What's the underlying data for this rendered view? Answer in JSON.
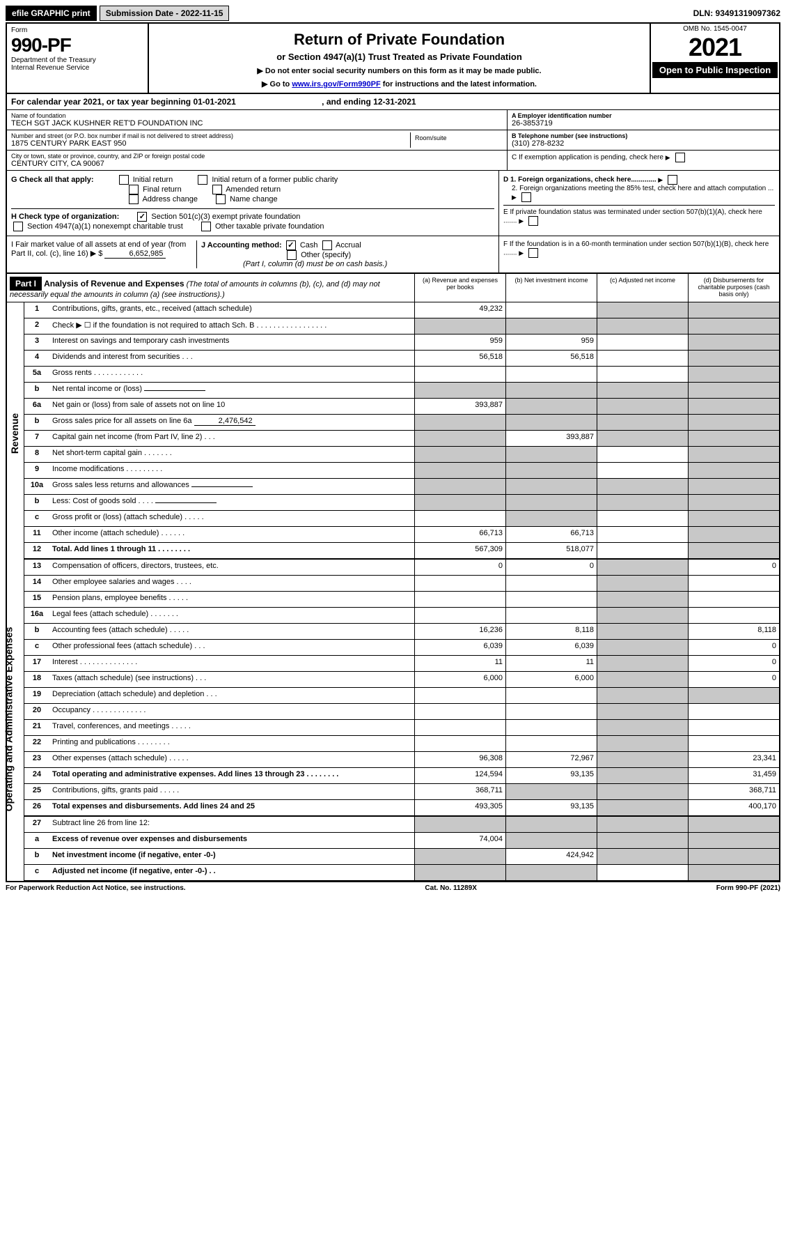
{
  "topbar": {
    "efile": "efile GRAPHIC print",
    "submission": "Submission Date - 2022-11-15",
    "dln": "DLN: 93491319097362"
  },
  "header": {
    "form_label": "Form",
    "form_num": "990-PF",
    "dept": "Department of the Treasury",
    "irs": "Internal Revenue Service",
    "title": "Return of Private Foundation",
    "subtitle": "or Section 4947(a)(1) Trust Treated as Private Foundation",
    "inst1": "▶ Do not enter social security numbers on this form as it may be made public.",
    "inst2_pre": "▶ Go to ",
    "inst2_link": "www.irs.gov/Form990PF",
    "inst2_post": " for instructions and the latest information.",
    "omb": "OMB No. 1545-0047",
    "year": "2021",
    "open": "Open to Public Inspection"
  },
  "calyr": "For calendar year 2021, or tax year beginning 01-01-2021",
  "calyr_end": ", and ending 12-31-2021",
  "foundation": {
    "name_lbl": "Name of foundation",
    "name": "TECH SGT JACK KUSHNER RET'D FOUNDATION INC",
    "addr_lbl": "Number and street (or P.O. box number if mail is not delivered to street address)",
    "addr": "1875 CENTURY PARK EAST 950",
    "room_lbl": "Room/suite",
    "city_lbl": "City or town, state or province, country, and ZIP or foreign postal code",
    "city": "CENTURY CITY, CA  90067"
  },
  "right_info": {
    "ein_lbl": "A Employer identification number",
    "ein": "26-3853719",
    "tel_lbl": "B Telephone number (see instructions)",
    "tel": "(310) 278-8232",
    "c": "C If exemption application is pending, check here",
    "d1": "D 1. Foreign organizations, check here.............",
    "d2": "2. Foreign organizations meeting the 85% test, check here and attach computation ...",
    "e": "E  If private foundation status was terminated under section 507(b)(1)(A), check here .......",
    "f": "F  If the foundation is in a 60-month termination under section 507(b)(1)(B), check here ......."
  },
  "g": {
    "label": "G Check all that apply:",
    "opts": [
      "Initial return",
      "Final return",
      "Address change",
      "Initial return of a former public charity",
      "Amended return",
      "Name change"
    ]
  },
  "h": {
    "label": "H Check type of organization:",
    "opt1": "Section 501(c)(3) exempt private foundation",
    "opt2": "Section 4947(a)(1) nonexempt charitable trust",
    "opt3": "Other taxable private foundation"
  },
  "i": {
    "label": "I Fair market value of all assets at end of year (from Part II, col. (c), line 16) ▶ $",
    "val": "6,652,985"
  },
  "j": {
    "label": "J Accounting method:",
    "cash": "Cash",
    "accrual": "Accrual",
    "other": "Other (specify)",
    "note": "(Part I, column (d) must be on cash basis.)"
  },
  "part1": {
    "hdr": "Part I",
    "title": "Analysis of Revenue and Expenses",
    "sub": "(The total of amounts in columns (b), (c), and (d) may not necessarily equal the amounts in column (a) (see instructions).)",
    "cols": {
      "a": "(a) Revenue and expenses per books",
      "b": "(b) Net investment income",
      "c": "(c) Adjusted net income",
      "d": "(d) Disbursements for charitable purposes (cash basis only)"
    }
  },
  "sidelabels": {
    "rev": "Revenue",
    "exp": "Operating and Administrative Expenses"
  },
  "lines": [
    {
      "n": "1",
      "d": "Contributions, gifts, grants, etc., received (attach schedule)",
      "a": "49,232",
      "b": "",
      "c": "g",
      "dd": "g"
    },
    {
      "n": "2",
      "d": "Check ▶ ☐ if the foundation is not required to attach Sch. B  . . . . . . . . . . . . . . . . .",
      "a": "g",
      "b": "g",
      "c": "g",
      "dd": "g"
    },
    {
      "n": "3",
      "d": "Interest on savings and temporary cash investments",
      "a": "959",
      "b": "959",
      "c": "",
      "dd": "g"
    },
    {
      "n": "4",
      "d": "Dividends and interest from securities  . . .",
      "a": "56,518",
      "b": "56,518",
      "c": "",
      "dd": "g"
    },
    {
      "n": "5a",
      "d": "Gross rents  . . . . . . . . . . . .",
      "a": "",
      "b": "",
      "c": "",
      "dd": "g"
    },
    {
      "n": "b",
      "d": "Net rental income or (loss)",
      "a": "g",
      "b": "g",
      "c": "g",
      "dd": "g",
      "inline": true
    },
    {
      "n": "6a",
      "d": "Net gain or (loss) from sale of assets not on line 10",
      "a": "393,887",
      "b": "g",
      "c": "g",
      "dd": "g"
    },
    {
      "n": "b",
      "d": "Gross sales price for all assets on line 6a",
      "a": "g",
      "b": "g",
      "c": "g",
      "dd": "g",
      "inline": true,
      "inlineval": "2,476,542"
    },
    {
      "n": "7",
      "d": "Capital gain net income (from Part IV, line 2)  . . .",
      "a": "g",
      "b": "393,887",
      "c": "g",
      "dd": "g"
    },
    {
      "n": "8",
      "d": "Net short-term capital gain . . . . . . .",
      "a": "g",
      "b": "g",
      "c": "",
      "dd": "g"
    },
    {
      "n": "9",
      "d": "Income modifications . . . . . . . . .",
      "a": "g",
      "b": "g",
      "c": "",
      "dd": "g"
    },
    {
      "n": "10a",
      "d": "Gross sales less returns and allowances",
      "a": "g",
      "b": "g",
      "c": "g",
      "dd": "g",
      "inline": true
    },
    {
      "n": "b",
      "d": "Less: Cost of goods sold  . . . .",
      "a": "g",
      "b": "g",
      "c": "g",
      "dd": "g",
      "inline": true
    },
    {
      "n": "c",
      "d": "Gross profit or (loss) (attach schedule)  . . . . .",
      "a": "",
      "b": "g",
      "c": "",
      "dd": "g"
    },
    {
      "n": "11",
      "d": "Other income (attach schedule)  . . . . . .",
      "a": "66,713",
      "b": "66,713",
      "c": "",
      "dd": "g"
    },
    {
      "n": "12",
      "d": "Total. Add lines 1 through 11  . . . . . . . .",
      "a": "567,309",
      "b": "518,077",
      "c": "",
      "dd": "g",
      "bold": true
    },
    {
      "n": "13",
      "d": "Compensation of officers, directors, trustees, etc.",
      "a": "0",
      "b": "0",
      "c": "g",
      "dd": "0"
    },
    {
      "n": "14",
      "d": "Other employee salaries and wages  . . . .",
      "a": "",
      "b": "",
      "c": "g",
      "dd": ""
    },
    {
      "n": "15",
      "d": "Pension plans, employee benefits . . . . .",
      "a": "",
      "b": "",
      "c": "g",
      "dd": ""
    },
    {
      "n": "16a",
      "d": "Legal fees (attach schedule) . . . . . . .",
      "a": "",
      "b": "",
      "c": "g",
      "dd": ""
    },
    {
      "n": "b",
      "d": "Accounting fees (attach schedule) . . . . .",
      "a": "16,236",
      "b": "8,118",
      "c": "g",
      "dd": "8,118"
    },
    {
      "n": "c",
      "d": "Other professional fees (attach schedule)  . . .",
      "a": "6,039",
      "b": "6,039",
      "c": "g",
      "dd": "0"
    },
    {
      "n": "17",
      "d": "Interest . . . . . . . . . . . . . .",
      "a": "11",
      "b": "11",
      "c": "g",
      "dd": "0"
    },
    {
      "n": "18",
      "d": "Taxes (attach schedule) (see instructions)  . . .",
      "a": "6,000",
      "b": "6,000",
      "c": "g",
      "dd": "0"
    },
    {
      "n": "19",
      "d": "Depreciation (attach schedule) and depletion  . . .",
      "a": "",
      "b": "",
      "c": "g",
      "dd": "g"
    },
    {
      "n": "20",
      "d": "Occupancy . . . . . . . . . . . . .",
      "a": "",
      "b": "",
      "c": "g",
      "dd": ""
    },
    {
      "n": "21",
      "d": "Travel, conferences, and meetings . . . . .",
      "a": "",
      "b": "",
      "c": "g",
      "dd": ""
    },
    {
      "n": "22",
      "d": "Printing and publications . . . . . . . .",
      "a": "",
      "b": "",
      "c": "g",
      "dd": ""
    },
    {
      "n": "23",
      "d": "Other expenses (attach schedule) . . . . .",
      "a": "96,308",
      "b": "72,967",
      "c": "g",
      "dd": "23,341"
    },
    {
      "n": "24",
      "d": "Total operating and administrative expenses. Add lines 13 through 23  . . . . . . . .",
      "a": "124,594",
      "b": "93,135",
      "c": "g",
      "dd": "31,459",
      "bold": true
    },
    {
      "n": "25",
      "d": "Contributions, gifts, grants paid  . . . . .",
      "a": "368,711",
      "b": "g",
      "c": "g",
      "dd": "368,711"
    },
    {
      "n": "26",
      "d": "Total expenses and disbursements. Add lines 24 and 25",
      "a": "493,305",
      "b": "93,135",
      "c": "g",
      "dd": "400,170",
      "bold": true
    },
    {
      "n": "27",
      "d": "Subtract line 26 from line 12:",
      "a": "g",
      "b": "g",
      "c": "g",
      "dd": "g"
    },
    {
      "n": "a",
      "d": "Excess of revenue over expenses and disbursements",
      "a": "74,004",
      "b": "g",
      "c": "g",
      "dd": "g",
      "bold": true
    },
    {
      "n": "b",
      "d": "Net investment income (if negative, enter -0-)",
      "a": "g",
      "b": "424,942",
      "c": "g",
      "dd": "g",
      "bold": true
    },
    {
      "n": "c",
      "d": "Adjusted net income (if negative, enter -0-)  . .",
      "a": "g",
      "b": "g",
      "c": "",
      "dd": "g",
      "bold": true
    }
  ],
  "footer": {
    "left": "For Paperwork Reduction Act Notice, see instructions.",
    "mid": "Cat. No. 11289X",
    "right": "Form 990-PF (2021)"
  }
}
